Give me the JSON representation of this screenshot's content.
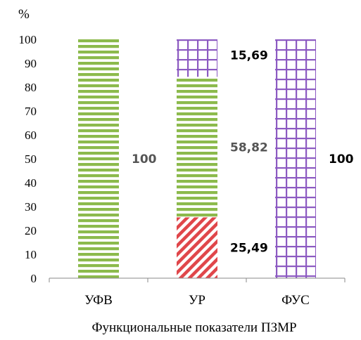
{
  "chart_data": {
    "type": "bar",
    "stacked": true,
    "ylabel": "%",
    "xlabel": "Функциональные показатели ПЗМР",
    "categories": [
      "УФВ",
      "УР",
      "ФУС"
    ],
    "ylim": [
      0,
      100
    ],
    "yticks": [
      0,
      10,
      20,
      30,
      40,
      50,
      60,
      70,
      80,
      90,
      100
    ],
    "grid": false,
    "legend": "none",
    "series": [
      {
        "pattern": "red-diagonal-stripes",
        "color": "#e0464a",
        "values": [
          0,
          25.49,
          0
        ]
      },
      {
        "pattern": "green-horizontal-stripes",
        "color": "#8cba4c",
        "values": [
          100,
          58.82,
          0
        ]
      },
      {
        "pattern": "purple-grid",
        "color": "#8c5ac2",
        "values": [
          0,
          15.69,
          100
        ]
      }
    ],
    "data_labels": [
      {
        "category": "УФВ",
        "text": "100",
        "color": "#555555"
      },
      {
        "category": "УР",
        "text": "25,49",
        "color": "#000000"
      },
      {
        "category": "УР",
        "text": "58,82",
        "color": "#555555"
      },
      {
        "category": "УР",
        "text": "15,69",
        "color": "#000000"
      },
      {
        "category": "ФУС",
        "text": "100",
        "color": "#000000"
      }
    ]
  }
}
